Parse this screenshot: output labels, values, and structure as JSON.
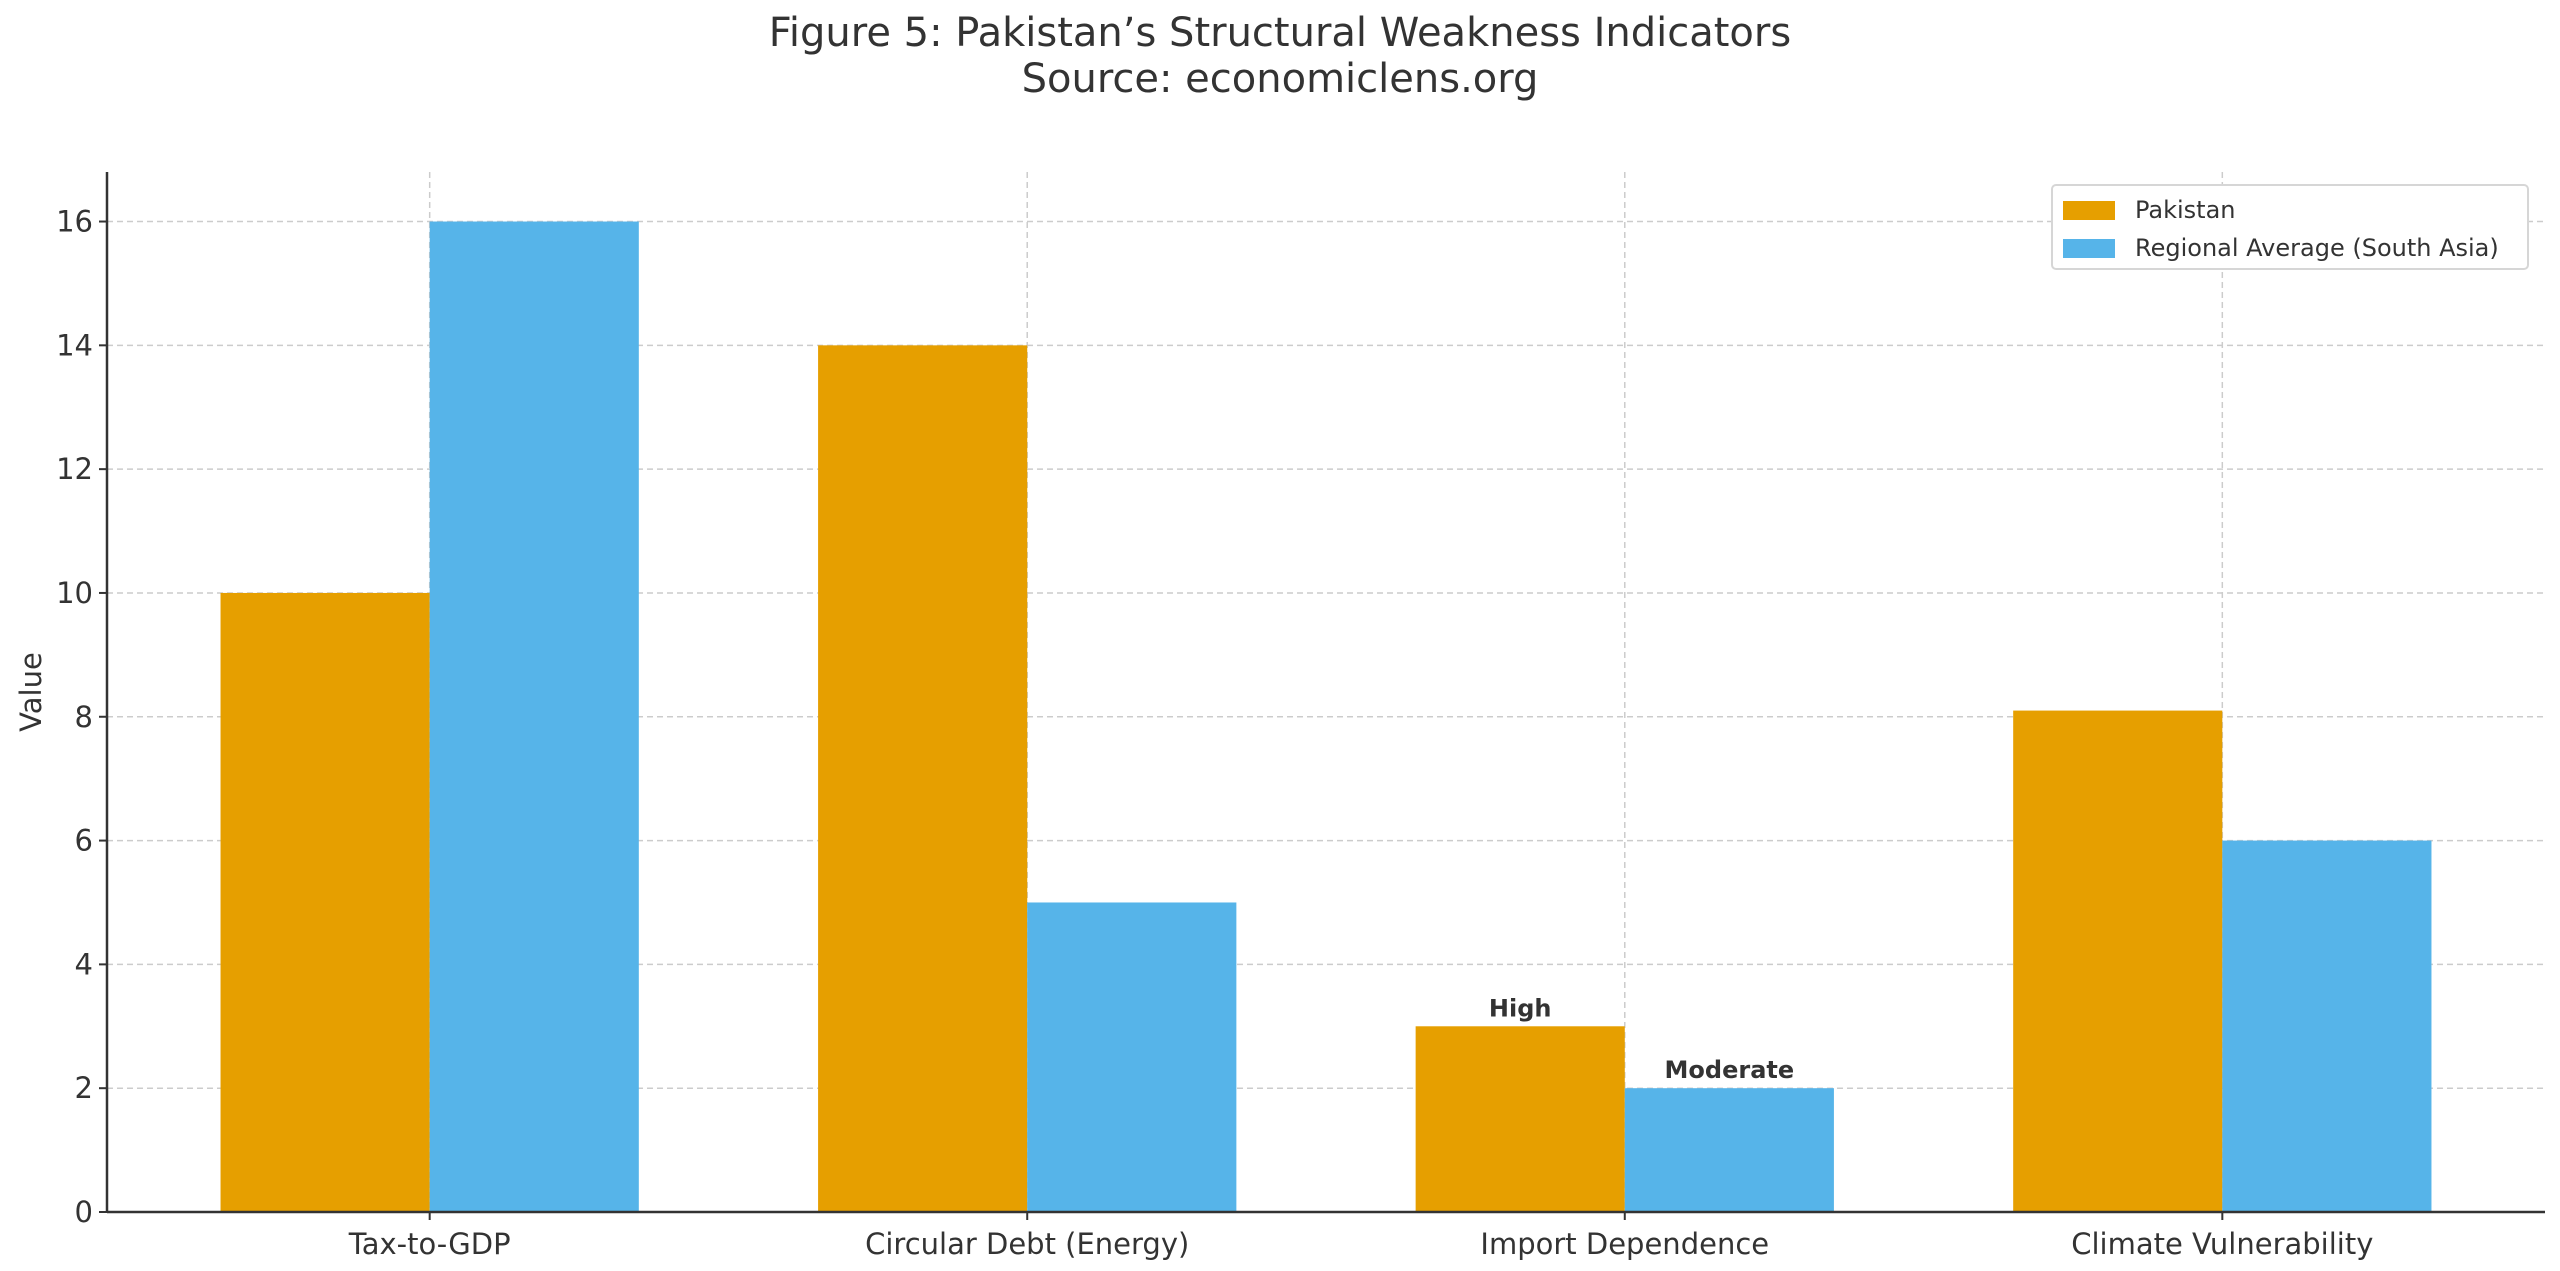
{
  "chart_data": {
    "type": "bar",
    "title": "Figure 5: Pakistan’s Structural Weakness Indicators",
    "subtitle": "Source: economiclens.org",
    "xlabel": "",
    "ylabel": "Value",
    "ylim": [
      0,
      16.8
    ],
    "yticks": [
      0,
      2,
      4,
      6,
      8,
      10,
      12,
      14,
      16
    ],
    "grid": true,
    "legend_position": "top-right",
    "categories": [
      "Tax-to-GDP",
      "Circular Debt (Energy)",
      "Import Dependence",
      "Climate Vulnerability"
    ],
    "series": [
      {
        "name": "Pakistan",
        "color": "#E69F00",
        "values": [
          10,
          14,
          3,
          8.1
        ]
      },
      {
        "name": "Regional Average (South Asia)",
        "color": "#56B4E9",
        "values": [
          16,
          5,
          2,
          6
        ]
      }
    ],
    "annotations": [
      {
        "category": "Import Dependence",
        "series": "Pakistan",
        "text": "High"
      },
      {
        "category": "Import Dependence",
        "series": "Regional Average (South Asia)",
        "text": "Moderate"
      }
    ]
  }
}
